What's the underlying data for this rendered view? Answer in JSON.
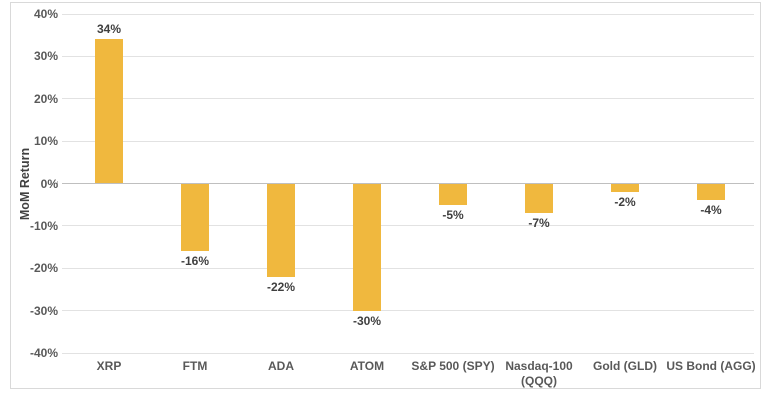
{
  "chart": {
    "bar_color": "#F0B83E",
    "gridline_color": "#E2E2E2",
    "zero_line_color": "#BFBFBF",
    "frame_border_color": "#D9D9D9",
    "tick_text_color": "#595959",
    "data_label_color": "#3F3F3F",
    "axis_title_color": "#404040"
  },
  "chart_data": {
    "type": "bar",
    "title": "",
    "xlabel": "",
    "ylabel": "MoM Return",
    "categories": [
      "XRP",
      "FTM",
      "ADA",
      "ATOM",
      "S&P 500 (SPY)",
      "Nasdaq-100\n(QQQ)",
      "Gold (GLD)",
      "US Bond (AGG)"
    ],
    "values": [
      34,
      -16,
      -22,
      -30,
      -5,
      -7,
      -2,
      -4
    ],
    "data_labels": [
      "34%",
      "-16%",
      "-22%",
      "-30%",
      "-5%",
      "-7%",
      "-2%",
      "-4%"
    ],
    "y_ticks": [
      40,
      30,
      20,
      10,
      0,
      -10,
      -20,
      -30,
      -40
    ],
    "y_tick_labels": [
      "40%",
      "30%",
      "20%",
      "10%",
      "0%",
      "-10%",
      "-20%",
      "-30%",
      "-40%"
    ],
    "ylim": [
      -40,
      40
    ],
    "grid": true,
    "legend": false
  }
}
